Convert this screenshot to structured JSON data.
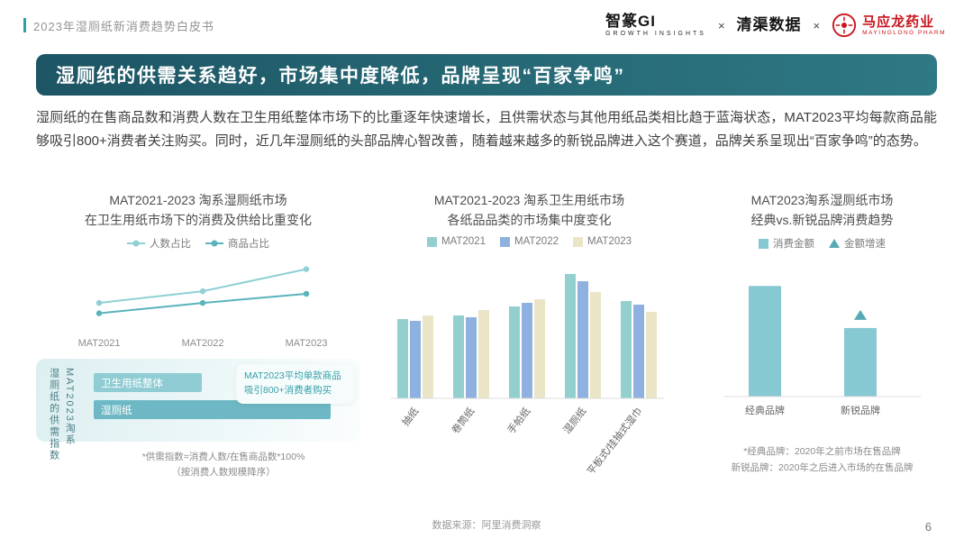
{
  "header": {
    "title": "2023年湿厕纸新消费趋势白皮书",
    "separator": "×",
    "brand1": {
      "name": "智篆GI",
      "sub": "GROWTH INSIGHTS"
    },
    "brand2": {
      "name": "清渠数据"
    },
    "brand3": {
      "name": "马应龙药业",
      "sub": "MAYINGLONG PHARM"
    }
  },
  "banner": {
    "title": "湿厕纸的供需关系趋好，市场集中度降低，品牌呈现“百家争鸣”"
  },
  "intro": {
    "text": "湿厕纸的在售商品数和消费人数在卫生用纸整体市场下的比重逐年快速增长，且供需状态与其他用纸品类相比趋于蓝海状态，MAT2023平均每款商品能够吸引800+消费者关注购买。同时，近几年湿厕纸的头部品牌心智改善，随着越来越多的新锐品牌进入这个赛道，品牌关系呈现出“百家争鸣”的态势。"
  },
  "supply_panel": {
    "vertical_line1": "MAT2023淘系",
    "vertical_line2": "湿厕纸的供需指数",
    "bar1_label": "卫生用纸整体",
    "bar1_width_pct": 42,
    "bar1_color": "#8fccd4",
    "bar2_label": "湿厕纸",
    "bar2_width_pct": 92,
    "bar2_color": "#6db8c4",
    "callout_line1": "MAT2023平均单款商品",
    "callout_line2": "吸引800+消费者购买",
    "footnote_line1": "*供需指数=消费人数/在售商品数*100%",
    "footnote_line2": "（按消费人数规模降序）"
  },
  "chart_data": [
    {
      "type": "line",
      "title": "MAT2021-2023 淘系湿厕纸市场",
      "subtitle": "在卫生用纸市场下的消费及供给比重变化",
      "x": [
        "MAT2021",
        "MAT2022",
        "MAT2023"
      ],
      "ylim": [
        0,
        2.5
      ],
      "legend_position": "top",
      "grid": false,
      "series": [
        {
          "name": "人数占比",
          "values": [
            0.9,
            1.35,
            2.2
          ],
          "color": "#8fd0d4"
        },
        {
          "name": "商品占比",
          "values": [
            0.5,
            0.9,
            1.25
          ],
          "color": "#59b3bc"
        }
      ]
    },
    {
      "type": "bar",
      "title": "MAT2021-2023 淘系卫生用纸市场",
      "subtitle": "各纸品品类的市场集中度变化",
      "categories": [
        "抽纸",
        "卷筒纸",
        "手帕纸",
        "湿厕纸",
        "平板式/挂抽式湿巾"
      ],
      "ylim": [
        0,
        75
      ],
      "legend_position": "top",
      "grid": false,
      "series": [
        {
          "name": "MAT2021",
          "values": [
            44,
            46,
            51,
            69,
            54
          ],
          "color": "#93cfcf"
        },
        {
          "name": "MAT2022",
          "values": [
            43,
            45,
            53,
            65,
            52
          ],
          "color": "#8fb1df"
        },
        {
          "name": "MAT2023",
          "values": [
            46,
            49,
            55,
            59,
            48
          ],
          "color": "#eae5c7"
        }
      ]
    },
    {
      "type": "bar",
      "title": "MAT2023淘系湿厕纸市场",
      "subtitle": "经典vs.新锐品牌消费趋势",
      "categories": [
        "经典品牌",
        "新锐品牌"
      ],
      "ylim": [
        0,
        110
      ],
      "legend_position": "top",
      "grid": false,
      "series": [
        {
          "name": "消费金额",
          "kind": "bar",
          "values": [
            100,
            62
          ],
          "color": "#87c9d3"
        },
        {
          "name": "金额增速",
          "kind": "marker",
          "values": [
            null,
            75
          ],
          "color": "#56a9b4"
        }
      ],
      "footnotes": [
        "*经典品牌：2020年之前市场在售品牌",
        "新锐品牌：2020年之后进入市场的在售品牌"
      ]
    }
  ],
  "footer": {
    "data_source": "数据来源：阿里消费洞察",
    "page_number": "6"
  },
  "theme": {
    "accent_teal": "#2f9ea6",
    "banner_gradient_start": "#1d5564",
    "banner_gradient_end": "#2e7984",
    "brand_red": "#c9151e"
  }
}
